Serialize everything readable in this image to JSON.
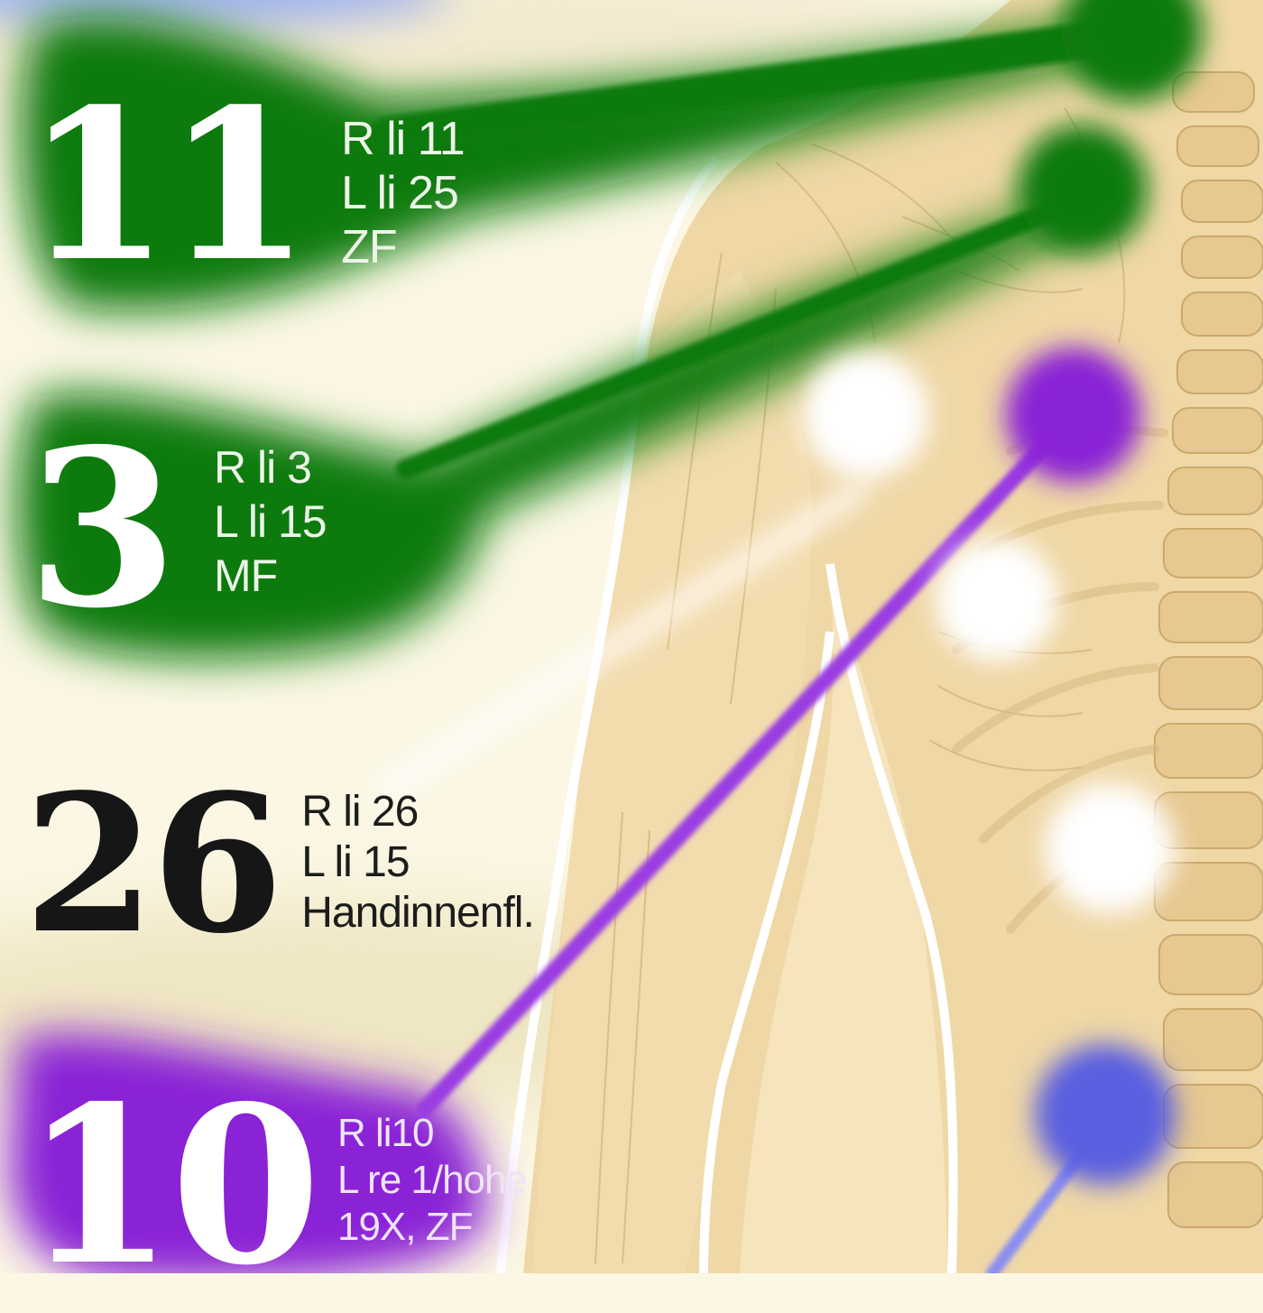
{
  "colors": {
    "green": "#0a7a10",
    "purple": "#8a22d6",
    "blue": "#5a5ee0",
    "skin": "#efd7a6",
    "background": "#fbf7e4"
  },
  "callouts": [
    {
      "number": "11",
      "lines": [
        "R li 11",
        "L li 25",
        "ZF"
      ],
      "color": "green"
    },
    {
      "number": "3",
      "lines": [
        "R li 3",
        "L li 15",
        "MF"
      ],
      "color": "green"
    },
    {
      "number": "26",
      "lines": [
        "R li 26",
        "L li 15",
        "Handinnenfl."
      ],
      "color": "white"
    },
    {
      "number": "10",
      "lines": [
        "R li10",
        "L re 1/hohe",
        "19X, ZF"
      ],
      "color": "purple"
    }
  ],
  "points": [
    {
      "name": "green-point-top",
      "color": "green"
    },
    {
      "name": "green-point-upper",
      "color": "green"
    },
    {
      "name": "purple-point",
      "color": "purple"
    },
    {
      "name": "white-point-shoulder",
      "color": "white"
    },
    {
      "name": "white-point-mid",
      "color": "white"
    },
    {
      "name": "white-point-lower",
      "color": "white"
    },
    {
      "name": "blue-point",
      "color": "blue"
    }
  ]
}
